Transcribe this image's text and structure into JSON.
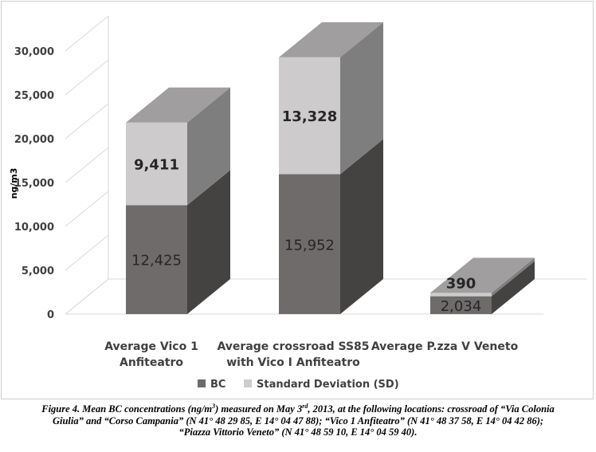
{
  "chart_data": {
    "type": "bar",
    "stacked": true,
    "three_d": true,
    "ylabel": "ng/m3",
    "ylim": [
      0,
      30000
    ],
    "yticks": [
      0,
      5000,
      10000,
      15000,
      20000,
      25000,
      30000
    ],
    "ytick_labels": [
      "0",
      "5,000",
      "10,000",
      "15,000",
      "20,000",
      "25,000",
      "30,000"
    ],
    "categories": [
      [
        "Average Vico 1",
        "Anfiteatro"
      ],
      [
        "Average crossroad SS85",
        "with Vico I Anfiteatro"
      ],
      [
        "Average P.zza V Veneto"
      ]
    ],
    "series": [
      {
        "name": "BC",
        "values": [
          12425,
          15952,
          2034
        ],
        "labels": [
          "12,425",
          "15,952",
          "2,034"
        ],
        "color": "#6f6b6b"
      },
      {
        "name": "Standard Deviation (SD)",
        "values": [
          9411,
          13328,
          390
        ],
        "labels": [
          "9,411",
          "13,328",
          "390"
        ],
        "color": "#cdcbcb"
      }
    ],
    "legend_position": "bottom",
    "grid": false
  },
  "caption": {
    "line1_before_sup": "Figure 4. Mean BC concentrations (ng/m",
    "line1_sup1": "3",
    "line1_mid": ") measured on May 3",
    "line1_sup2": "rd",
    "line1_after_sup": ", 2013, at the following locations: crossroad of “Via Colonia",
    "line2": "Giulia” and “Corso Campania” (N 41° 48 29 85, E 14° 04 47 88); “Vico 1 Anfiteatro” (N 41° 48 37 58, E 14° 04 42 86);",
    "line3": "“Piazza Vittorio Veneto” (N 41° 48 59 10, E 14° 04 59 40)."
  }
}
